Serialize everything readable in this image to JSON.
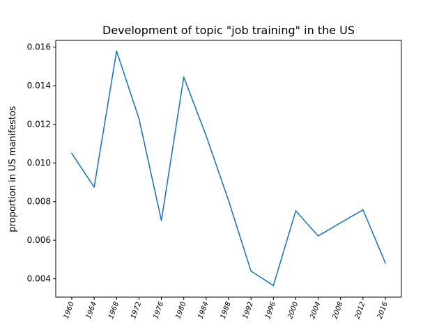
{
  "chart_data": {
    "type": "line",
    "title": "Development of topic \"job training\" in the US",
    "xlabel": "",
    "ylabel": "proportion in US manifestos",
    "x": [
      "1960",
      "1964",
      "1968",
      "1972",
      "1976",
      "1980",
      "1984",
      "1988",
      "1992",
      "1996",
      "2000",
      "2004",
      "2008",
      "2012",
      "2016"
    ],
    "series": [
      {
        "values": [
          0.0105,
          0.00875,
          0.0158,
          0.0123,
          0.00702,
          0.01445,
          0.0114,
          0.00805,
          0.0044,
          0.00365,
          0.00752,
          0.00622,
          0.0069,
          0.00757,
          0.00482
        ],
        "color": "#1f77b4"
      }
    ],
    "yticks": [
      "0.004",
      "0.006",
      "0.008",
      "0.010",
      "0.012",
      "0.014",
      "0.016"
    ],
    "ylim": [
      0.00305,
      0.01635
    ],
    "grid": false,
    "legend": "none"
  }
}
